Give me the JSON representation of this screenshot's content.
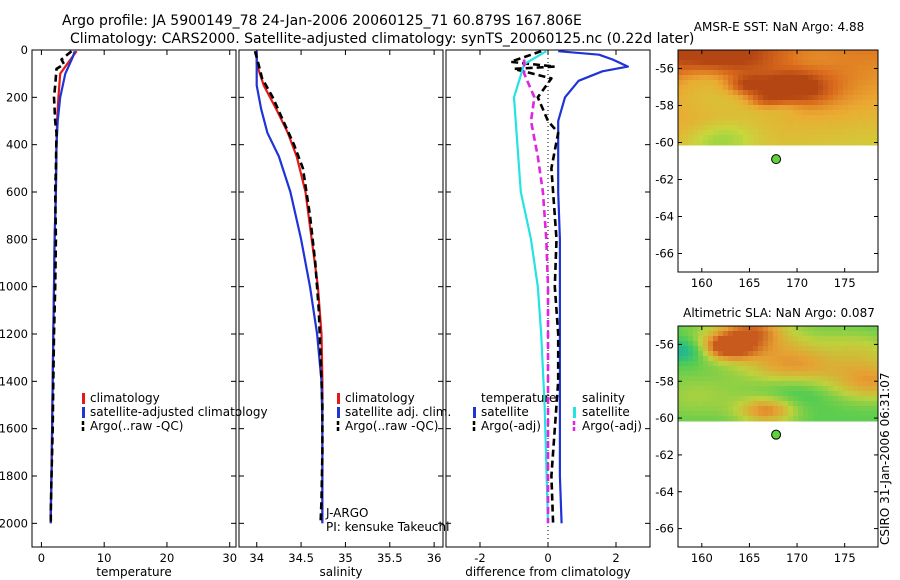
{
  "titles": {
    "line1": "Argo profile: JA 5900149_78 24-Jan-2006 20060125_71 60.879S 167.806E",
    "line2": "Climatology: CARS2000. Satellite-adjusted climatology: synTS_20060125.nc (0.22d later)"
  },
  "side_label": "CSIRO 31-Jan-2006 06:31:07",
  "annotations": {
    "program": "J-ARGO",
    "pi": "PI: kensuke Takeuchi"
  },
  "colors": {
    "climatology": "#e41a1a",
    "satellite": "#1f33d6",
    "argo": "#000000",
    "salinity_satellite": "#25e3e3",
    "salinity_argo": "#e024e0",
    "float_marker": "#5fd13a"
  },
  "chart_data": [
    {
      "id": "temperature",
      "type": "line",
      "xlabel": "temperature",
      "ylabel": "",
      "xlim": [
        -1.5,
        31
      ],
      "ylim": [
        2100,
        0
      ],
      "xticks": [
        0,
        10,
        20,
        30
      ],
      "yticks": [
        0,
        200,
        400,
        600,
        800,
        1000,
        1200,
        1400,
        1600,
        1800,
        2000
      ],
      "legend": [
        "climatology",
        "satellite-adjusted climatology",
        "Argo(..raw -QC)"
      ],
      "series": [
        {
          "name": "climatology",
          "color": "#e41a1a",
          "style": "solid",
          "x": [
            5.6,
            4.9,
            3.0,
            2.7,
            2.5,
            2.4,
            2.3,
            2.1,
            2.0,
            1.9,
            1.8,
            1.7,
            1.6,
            1.5,
            1.5
          ],
          "y": [
            5,
            30,
            100,
            200,
            300,
            400,
            600,
            800,
            1000,
            1200,
            1400,
            1600,
            1800,
            1950,
            2000
          ]
        },
        {
          "name": "satellite-adjusted climatology",
          "color": "#1f33d6",
          "style": "solid",
          "x": [
            5.3,
            5.0,
            3.8,
            3.0,
            2.6,
            2.4,
            2.3,
            2.1,
            2.0,
            1.9,
            1.8,
            1.7,
            1.6,
            1.5,
            1.5
          ],
          "y": [
            5,
            30,
            100,
            200,
            300,
            400,
            600,
            800,
            1000,
            1200,
            1400,
            1600,
            1800,
            1950,
            2000
          ]
        },
        {
          "name": "Argo(..raw -QC)",
          "color": "#000000",
          "style": "dashed",
          "x": [
            4.8,
            3.2,
            3.6,
            2.4,
            2.2,
            2.0,
            2.2,
            2.4,
            2.3,
            2.2,
            2.3,
            2.2,
            2.0,
            1.9,
            1.8,
            1.6,
            1.5,
            1.5
          ],
          "y": [
            5,
            40,
            60,
            80,
            150,
            200,
            300,
            350,
            500,
            600,
            800,
            1000,
            1200,
            1400,
            1600,
            1800,
            1950,
            2000
          ]
        }
      ]
    },
    {
      "id": "salinity",
      "type": "line",
      "xlabel": "salinity",
      "ylabel": "",
      "xlim": [
        33.8,
        36.1
      ],
      "ylim": [
        2100,
        0
      ],
      "xticks": [
        34,
        34.5,
        35,
        35.5,
        36
      ],
      "xticklabels": [
        "34",
        "34.5",
        "35",
        "35.5",
        "36"
      ],
      "yticks": [
        0,
        200,
        400,
        600,
        800,
        1000,
        1200,
        1400,
        1600,
        1800,
        2000
      ],
      "legend": [
        "climatology",
        "satellite adj. clim.",
        "Argo(..raw -QC)"
      ],
      "series": [
        {
          "name": "climatology",
          "color": "#e41a1a",
          "style": "solid",
          "x": [
            34.0,
            34.0,
            34.08,
            34.22,
            34.35,
            34.45,
            34.55,
            34.62,
            34.69,
            34.73,
            34.74,
            34.74,
            34.74,
            34.74
          ],
          "y": [
            5,
            60,
            150,
            250,
            350,
            450,
            600,
            800,
            1000,
            1200,
            1400,
            1600,
            1800,
            2000
          ]
        },
        {
          "name": "satellite adj. clim.",
          "color": "#1f33d6",
          "style": "solid",
          "x": [
            34.0,
            34.0,
            34.0,
            34.05,
            34.12,
            34.25,
            34.38,
            34.5,
            34.6,
            34.68,
            34.73,
            34.74,
            34.74,
            34.74
          ],
          "y": [
            5,
            60,
            150,
            250,
            350,
            450,
            600,
            800,
            1000,
            1200,
            1400,
            1600,
            1800,
            2000
          ]
        },
        {
          "name": "Argo(..raw -QC)",
          "color": "#000000",
          "style": "dashed",
          "x": [
            33.98,
            34.02,
            34.06,
            34.18,
            34.3,
            34.42,
            34.52,
            34.6,
            34.66,
            34.7,
            34.72,
            34.74,
            34.74,
            34.73,
            34.72
          ],
          "y": [
            5,
            60,
            120,
            200,
            300,
            400,
            500,
            700,
            900,
            1100,
            1300,
            1500,
            1700,
            1900,
            2000
          ]
        }
      ]
    },
    {
      "id": "difference",
      "type": "line",
      "xlabel": "difference from climatology",
      "ylabel": "",
      "xlim": [
        -3.0,
        3.0
      ],
      "ylim": [
        2100,
        0
      ],
      "xticks": [
        -2,
        0,
        2
      ],
      "yticks": [
        0,
        200,
        400,
        600,
        800,
        1000,
        1200,
        1400,
        1600,
        1800,
        2000
      ],
      "legend_groups": [
        {
          "title": "temperature",
          "entries": [
            "satellite",
            "Argo(-adj)"
          ]
        },
        {
          "title": "salinity",
          "entries": [
            "satellite",
            "Argo(-adj)"
          ]
        }
      ],
      "series": [
        {
          "name": "temperature satellite",
          "color": "#1f33d6",
          "style": "solid",
          "x": [
            0.3,
            1.5,
            1.9,
            2.35,
            1.6,
            0.9,
            0.5,
            0.3,
            0.3,
            0.3,
            0.35,
            0.35,
            0.35,
            0.35,
            0.35,
            0.4
          ],
          "y": [
            5,
            20,
            40,
            70,
            90,
            130,
            200,
            300,
            400,
            600,
            800,
            1000,
            1200,
            1600,
            1800,
            2000
          ]
        },
        {
          "name": "temperature Argo(-adj)",
          "color": "#000000",
          "style": "dashed",
          "x": [
            -0.2,
            -1.1,
            0.2,
            -1.0,
            0.1,
            -0.3,
            0.0,
            0.3,
            0.1,
            0.25,
            0.2,
            0.3,
            0.3,
            0.2,
            0.1,
            0.15
          ],
          "y": [
            5,
            50,
            70,
            80,
            120,
            200,
            300,
            350,
            500,
            800,
            1000,
            1200,
            1400,
            1600,
            1800,
            2000
          ]
        },
        {
          "name": "salinity satellite",
          "color": "#25e3e3",
          "style": "solid",
          "x": [
            -0.05,
            -0.7,
            -1.0,
            -0.95,
            -0.9,
            -0.8,
            -0.5,
            -0.3,
            -0.2,
            -0.1,
            0.0
          ],
          "y": [
            5,
            60,
            200,
            300,
            400,
            600,
            800,
            1000,
            1200,
            1500,
            2000
          ]
        },
        {
          "name": "salinity Argo(-adj)",
          "color": "#e024e0",
          "style": "dashed",
          "x": [
            -0.7,
            -0.7,
            -0.4,
            -0.5,
            -0.3,
            -0.15,
            -0.05,
            0.0,
            0.0
          ],
          "y": [
            40,
            100,
            200,
            300,
            450,
            600,
            800,
            1000,
            2000
          ]
        }
      ]
    },
    {
      "id": "sst_map",
      "type": "heatmap",
      "title": "AMSR-E SST: NaN Argo: 4.88",
      "xlim": [
        157.5,
        178.5
      ],
      "ylim": [
        -67,
        -55
      ],
      "xticks": [
        160,
        165,
        170,
        175
      ],
      "yticks": [
        -56,
        -58,
        -60,
        -62,
        -64,
        -66
      ],
      "data_extent_lat": [
        -55,
        -60
      ],
      "float_position": {
        "lon": 167.8,
        "lat": -60.9
      }
    },
    {
      "id": "sla_map",
      "type": "heatmap",
      "title": "Altimetric SLA: NaN Argo: 0.087",
      "xlim": [
        157.5,
        178.5
      ],
      "ylim": [
        -67,
        -55
      ],
      "xticks": [
        160,
        165,
        170,
        175
      ],
      "yticks": [
        -56,
        -58,
        -60,
        -62,
        -64,
        -66
      ],
      "data_extent_lat": [
        -55,
        -60
      ],
      "float_position": {
        "lon": 167.8,
        "lat": -60.9
      }
    }
  ]
}
